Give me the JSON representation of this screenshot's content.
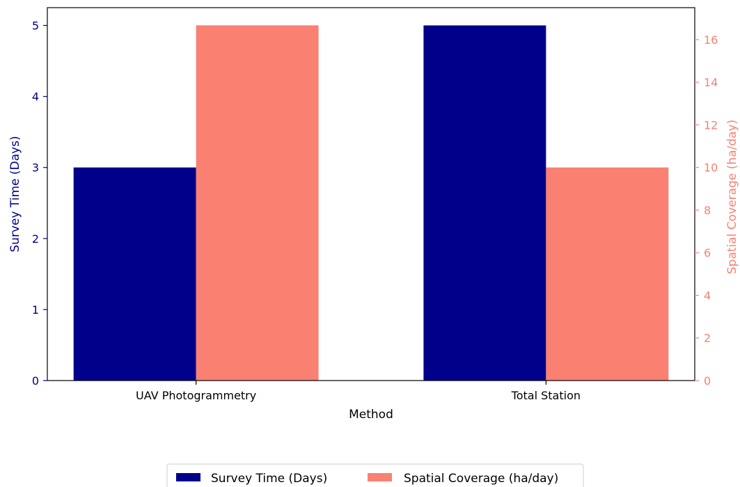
{
  "chart_data": {
    "type": "bar",
    "categories": [
      "UAV Photogrammetry",
      "Total Station"
    ],
    "xlabel": "Method",
    "series": [
      {
        "name": "Survey Time (Days)",
        "values": [
          3,
          5
        ],
        "color": "#00008b",
        "axis": "left"
      },
      {
        "name": "Spatial Coverage (ha/day)",
        "values": [
          16.67,
          10
        ],
        "color": "#fa8072",
        "axis": "right"
      }
    ],
    "ylabel_left": "Survey Time (Days)",
    "ylim_left": [
      0,
      5.25
    ],
    "yticks_left": [
      0,
      1,
      2,
      3,
      4,
      5
    ],
    "ylabel_right": "Spatial Coverage (ha/day)",
    "ylim_right": [
      0,
      17.5
    ],
    "yticks_right": [
      0,
      2,
      4,
      6,
      8,
      10,
      12,
      14,
      16
    ],
    "grid": false,
    "legend_placement": "bottom-center"
  }
}
